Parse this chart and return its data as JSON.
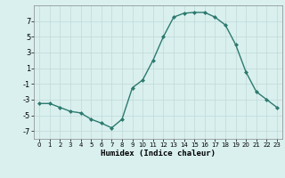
{
  "x": [
    0,
    1,
    2,
    3,
    4,
    5,
    6,
    7,
    8,
    9,
    10,
    11,
    12,
    13,
    14,
    15,
    16,
    17,
    18,
    19,
    20,
    21,
    22,
    23
  ],
  "y": [
    -3.5,
    -3.5,
    -4.0,
    -4.5,
    -4.7,
    -5.5,
    -6.0,
    -6.6,
    -5.5,
    -1.5,
    -0.5,
    2.0,
    5.0,
    7.5,
    8.0,
    8.1,
    8.1,
    7.5,
    6.5,
    4.0,
    0.5,
    -2.0,
    -3.0,
    -4.0
  ],
  "xlabel": "Humidex (Indice chaleur)",
  "ylabel": "",
  "title": "",
  "bg_color": "#d9f0ef",
  "line_color": "#2d7a6e",
  "grid_color": "#c0d8d8",
  "ylim": [
    -8,
    9
  ],
  "yticks": [
    -7,
    -5,
    -3,
    -1,
    1,
    3,
    5,
    7
  ],
  "xticks": [
    0,
    1,
    2,
    3,
    4,
    5,
    6,
    7,
    8,
    9,
    10,
    11,
    12,
    13,
    14,
    15,
    16,
    17,
    18,
    19,
    20,
    21,
    22,
    23
  ],
  "marker": "D",
  "markersize": 2,
  "linewidth": 1.0
}
